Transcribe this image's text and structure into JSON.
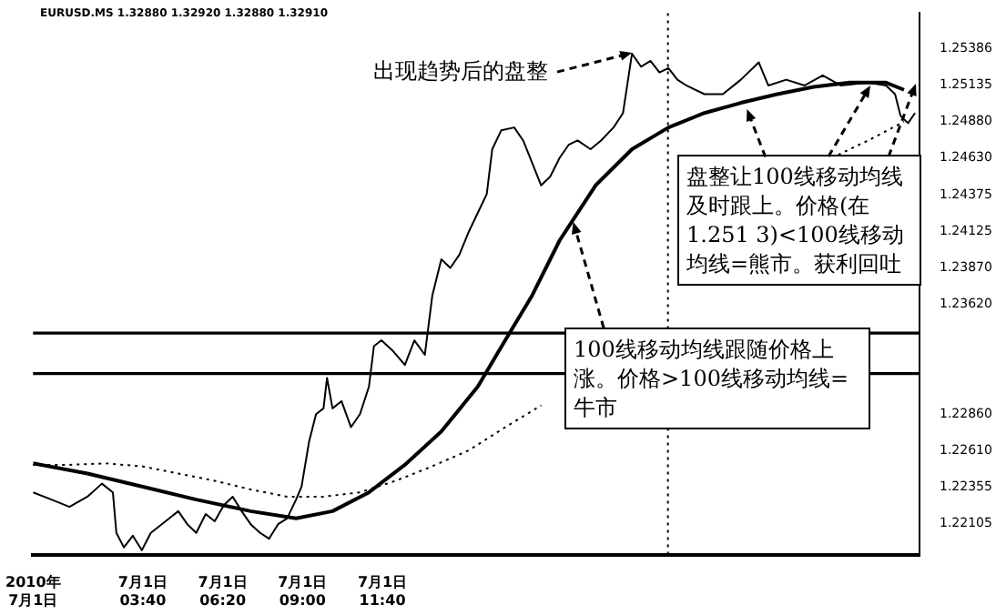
{
  "chart_data": {
    "type": "line",
    "series": [
      {
        "color": "#000000",
        "line_style": "solid",
        "x": [
          "2010-07-01T00:00",
          "2010-07-01T00:37",
          "2010-07-01T01:13",
          "2010-07-01T01:49",
          "2010-07-01T02:18",
          "2010-07-01T02:40",
          "2010-07-01T02:47",
          "2010-07-01T03:02",
          "2010-07-01T03:20",
          "2010-07-01T03:38",
          "2010-07-01T03:56",
          "2010-07-01T04:33",
          "2010-07-01T04:51",
          "2010-07-01T05:09",
          "2010-07-01T05:27",
          "2010-07-01T05:46",
          "2010-07-01T06:04",
          "2010-07-01T06:22",
          "2010-07-01T06:40",
          "2010-07-01T06:58",
          "2010-07-01T07:16",
          "2010-07-01T07:35",
          "2010-07-01T07:53",
          "2010-07-01T08:11",
          "2010-07-01T08:29",
          "2010-07-01T08:47",
          "2010-07-01T08:58",
          "2010-07-01T09:13",
          "2010-07-01T09:27",
          "2010-07-01T09:42",
          "2010-07-01T09:49",
          "2010-07-01T10:00",
          "2010-07-01T10:18",
          "2010-07-01T10:37",
          "2010-07-01T10:55",
          "2010-07-01T11:13",
          "2010-07-01T11:23",
          "2010-07-01T11:38",
          "2010-07-01T12:00",
          "2010-07-01T12:25",
          "2010-07-01T12:44",
          "2010-07-01T13:05",
          "2010-07-01T13:20",
          "2010-07-01T13:38",
          "2010-07-01T13:56",
          "2010-07-01T14:14",
          "2010-07-01T14:33",
          "2010-07-01T14:51",
          "2010-07-01T15:09",
          "2010-07-01T15:20",
          "2010-07-01T15:38",
          "2010-07-01T16:04",
          "2010-07-01T16:22",
          "2010-07-01T16:58",
          "2010-07-01T17:16",
          "2010-07-01T17:35",
          "2010-07-01T17:53",
          "2010-07-01T18:11",
          "2010-07-01T18:37",
          "2010-07-01T18:58",
          "2010-07-01T19:23",
          "2010-07-01T19:42",
          "2010-07-01T20:00",
          "2010-07-01T20:18",
          "2010-07-01T20:37",
          "2010-07-01T20:55",
          "2010-07-01T21:13",
          "2010-07-01T21:31",
          "2010-07-01T21:49",
          "2010-07-01T22:25",
          "2010-07-01T23:02",
          "2010-07-01T23:38",
          "2010-07-02T00:14",
          "2010-07-02T00:33",
          "2010-07-02T01:09",
          "2010-07-02T01:46",
          "2010-07-02T02:22",
          "2010-07-02T02:58",
          "2010-07-02T03:53",
          "2010-07-02T04:29",
          "2010-07-02T04:47",
          "2010-07-02T04:58",
          "2010-07-02T05:13",
          "2010-07-02T05:27"
        ],
        "values": [
          1.2232,
          1.2227,
          1.2222,
          1.2229,
          1.2238,
          1.2232,
          1.2204,
          1.2194,
          1.2202,
          1.2192,
          1.2204,
          1.2214,
          1.2219,
          1.221,
          1.2204,
          1.2217,
          1.2212,
          1.2223,
          1.2229,
          1.2219,
          1.221,
          1.2204,
          1.22,
          1.221,
          1.2214,
          1.2227,
          1.2236,
          1.2267,
          1.2286,
          1.229,
          1.2311,
          1.229,
          1.2295,
          1.2277,
          1.2286,
          1.2305,
          1.2333,
          1.2337,
          1.233,
          1.232,
          1.2337,
          1.2327,
          1.2368,
          1.2393,
          1.2387,
          1.2396,
          1.2412,
          1.2425,
          1.2438,
          1.2469,
          1.2482,
          1.2484,
          1.2475,
          1.2444,
          1.245,
          1.2463,
          1.2472,
          1.2475,
          1.2469,
          1.2475,
          1.2484,
          1.2494,
          1.2535,
          1.2526,
          1.253,
          1.2522,
          1.2525,
          1.2517,
          1.2513,
          1.2507,
          1.2507,
          1.2517,
          1.2529,
          1.2513,
          1.2517,
          1.2513,
          1.252,
          1.2513,
          1.2515,
          1.2513,
          1.2507,
          1.2492,
          1.2487,
          1.2494
        ]
      },
      {
        "color": "#000000",
        "line_style": "solid",
        "x": [
          "2010-07-01T00:00",
          "2010-07-01T01:49",
          "2010-07-01T03:38",
          "2010-07-01T05:27",
          "2010-07-01T07:16",
          "2010-07-01T08:47",
          "2010-07-01T10:00",
          "2010-07-01T11:13",
          "2010-07-01T12:25",
          "2010-07-01T13:38",
          "2010-07-01T14:51",
          "2010-07-01T15:46",
          "2010-07-01T16:40",
          "2010-07-01T17:35",
          "2010-07-01T18:47",
          "2010-07-01T20:00",
          "2010-07-01T21:13",
          "2010-07-01T22:25",
          "2010-07-01T23:38",
          "2010-07-02T00:51",
          "2010-07-02T02:04",
          "2010-07-02T03:16",
          "2010-07-02T04:29",
          "2010-07-02T05:05"
        ],
        "values": [
          1.2252,
          1.2245,
          1.2236,
          1.2227,
          1.2219,
          1.2214,
          1.2219,
          1.2232,
          1.2251,
          1.2274,
          1.2305,
          1.2337,
          1.2368,
          1.2406,
          1.2444,
          1.2469,
          1.2484,
          1.2494,
          1.2501,
          1.2507,
          1.2512,
          1.2515,
          1.2515,
          1.251
        ]
      },
      {
        "color": "#000000",
        "line_style": "dotted",
        "x": [
          "2010-07-01T00:00",
          "2010-07-01T01:13",
          "2010-07-01T02:25",
          "2010-07-01T03:38",
          "2010-07-01T04:51",
          "2010-07-01T06:04",
          "2010-07-01T07:16",
          "2010-07-01T08:29",
          "2010-07-01T09:42",
          "2010-07-01T10:55",
          "2010-07-01T12:07",
          "2010-07-01T13:20",
          "2010-07-01T14:33",
          "2010-07-01T15:46",
          "2010-07-01T16:58",
          "2010-07-01T18:11",
          "2010-07-01T19:23",
          "2010-07-01T20:37",
          "2010-07-01T21:49",
          "2010-07-01T23:02",
          "2010-07-02T00:14",
          "2010-07-02T01:27",
          "2010-07-02T02:40",
          "2010-07-02T03:53",
          "2010-07-02T05:05"
        ],
        "values": [
          1.2251,
          1.2251,
          1.2252,
          1.225,
          1.2245,
          1.224,
          1.2234,
          1.2229,
          1.2229,
          1.2232,
          1.224,
          1.225,
          1.2261,
          1.2277,
          1.2292,
          null,
          null,
          null,
          null,
          null,
          null,
          null,
          1.2463,
          1.2475,
          1.2488
        ]
      }
    ],
    "xlim": [
      "2010-07-01T00:00",
      "2010-07-02T05:36"
    ],
    "xticks": [
      {
        "value": "2010-07-01T00:00",
        "label": "2010年\n7月1日"
      },
      {
        "value": "2010-07-01T03:40",
        "label": "7月1日\n03:40"
      },
      {
        "value": "2010-07-01T06:20",
        "label": "7月1日\n06:20"
      },
      {
        "value": "2010-07-01T09:00",
        "label": "7月1日\n09:00"
      },
      {
        "value": "2010-07-01T11:40",
        "label": "7月1日\n11:40"
      }
    ],
    "ylim": [
      1.2189,
      1.2563
    ],
    "yticks": [
      {
        "value": 1.25386,
        "label": "1.25386"
      },
      {
        "value": 1.25135,
        "label": "1.25135"
      },
      {
        "value": 1.2488,
        "label": "1.24880"
      },
      {
        "value": 1.2463,
        "label": "1.24630"
      },
      {
        "value": 1.24375,
        "label": "1.24375"
      },
      {
        "value": 1.24125,
        "label": "1.24125"
      },
      {
        "value": 1.2387,
        "label": "1.23870"
      },
      {
        "value": 1.2362,
        "label": "1.23620"
      },
      {
        "value": 1.2286,
        "label": "1.22860"
      },
      {
        "value": 1.2261,
        "label": "1.22610"
      },
      {
        "value": 1.22355,
        "label": "1.22355"
      },
      {
        "value": 1.22105,
        "label": "1.22105"
      }
    ],
    "ref_lines": [
      {
        "axis": "y",
        "value": 1.2342,
        "color": "#000000",
        "line_style": "solid"
      },
      {
        "axis": "y",
        "value": 1.2314,
        "color": "#000000",
        "line_style": "solid"
      },
      {
        "axis": "x",
        "value": "2010-07-01T21:12",
        "color": "#000000",
        "line_style": "dotted"
      }
    ],
    "annotations": [
      "EURUSD.MS 1.32880 1.32920 1.32880 1.32910",
      {
        "text": "出现趋势后的盘整",
        "x": "2010-07-01T20:00",
        "y": 1.2535
      },
      {
        "text": "盘整让100线移动均线及时跟上。价格(在1.251 3)<100线移动均线=熊市。获利回吐",
        "x": "2010-07-01T23:49",
        "y": 1.2497
      },
      {
        "text": "100线移动均线跟随价格上涨。价格>100线移动均线=牛市",
        "x": "2010-07-01T18:04",
        "y": 1.2419
      }
    ],
    "marker": "none",
    "grid": false,
    "legend": false
  }
}
